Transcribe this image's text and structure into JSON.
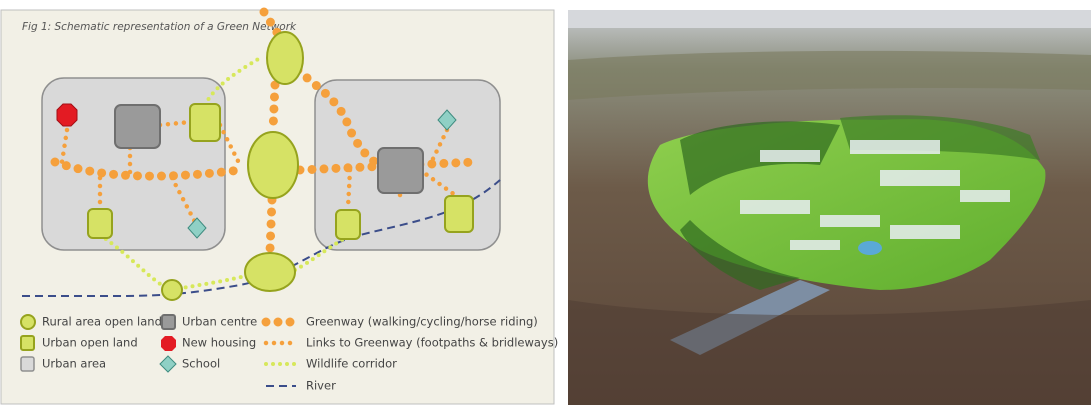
{
  "diagram": {
    "title": "Fig 1: Schematic representation of a Green Network",
    "legend": [
      "Rural area open land",
      "Urban open land",
      "Urban area",
      "Urban centre",
      "New housing",
      "School",
      "Greenway (walking/cycling/horse riding)",
      "Links to Greenway (footpaths & bridleways)",
      "Wildlife corridor",
      "River"
    ]
  }
}
